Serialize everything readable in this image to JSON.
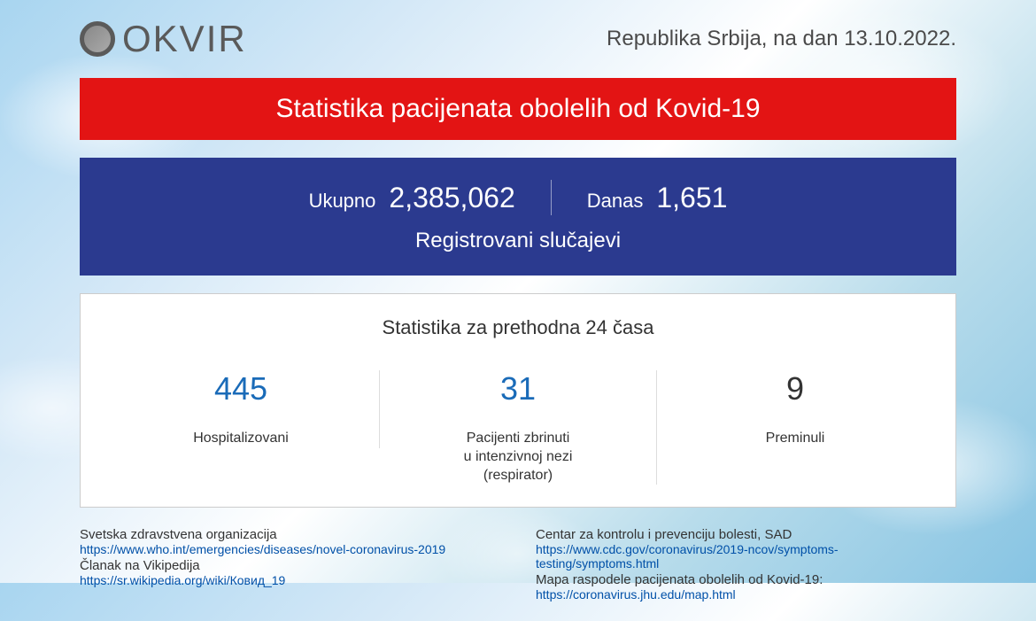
{
  "header": {
    "logo_text": "OKVIR",
    "date_text": "Republika Srbija, na dan 13.10.2022."
  },
  "red_banner": {
    "title": "Statistika pacijenata obolelih od Kovid-19",
    "background_color": "#e31414",
    "text_color": "#ffffff"
  },
  "blue_panel": {
    "background_color": "#2b3a8f",
    "text_color": "#ffffff",
    "total_label": "Ukupno",
    "total_value": "2,385,062",
    "today_label": "Danas",
    "today_value": "1,651",
    "subtitle": "Registrovani slučajevi"
  },
  "white_panel": {
    "title": "Statistika za prethodna 24 časa",
    "background_color": "#ffffff",
    "stats": [
      {
        "value": "445",
        "label": "Hospitalizovani",
        "color": "#1a6bb8"
      },
      {
        "value": "31",
        "label": "Pacijenti zbrinuti\nu intenzivnoj nezi\n(respirator)",
        "color": "#1a6bb8"
      },
      {
        "value": "9",
        "label": "Preminuli",
        "color": "#333333"
      }
    ]
  },
  "footer": {
    "left": [
      {
        "label": "Svetska zdravstvena organizacija",
        "link": "https://www.who.int/emergencies/diseases/novel-coronavirus-2019"
      },
      {
        "label": "Članak na Vikipedija",
        "link": "https://sr.wikipedia.org/wiki/Ковид_19"
      }
    ],
    "right": [
      {
        "label": "Centar za kontrolu i prevenciju bolesti, SAD",
        "link": "https://www.cdc.gov/coronavirus/2019-ncov/symptoms-testing/symptoms.html"
      },
      {
        "label": "Mapa raspodele pacijenata obolelih od Kovid-19:",
        "link": "https://coronavirus.jhu.edu/map.html"
      }
    ]
  },
  "colors": {
    "link_color": "#0050a8",
    "text_dark": "#333333",
    "logo_gray": "#5a5a5a"
  }
}
